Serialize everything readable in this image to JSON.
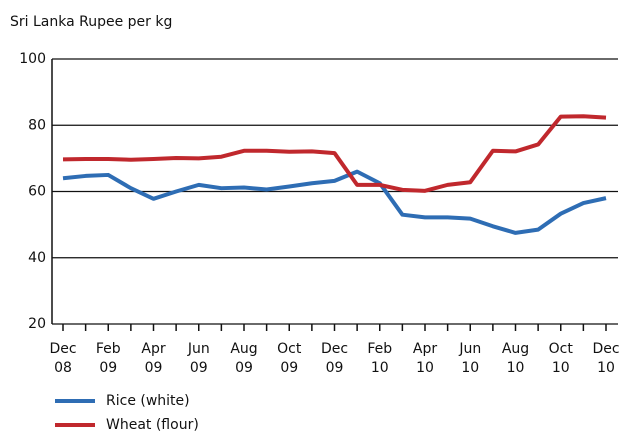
{
  "chart_data": {
    "type": "line",
    "y_label": "Sri Lanka Rupee per kg",
    "categories": [
      "Dec 08",
      null,
      "Feb 09",
      null,
      "Apr 09",
      null,
      "Jun 09",
      null,
      "Aug 09",
      null,
      "Oct 09",
      null,
      "Dec 09",
      null,
      "Feb 10",
      null,
      "Apr 10",
      null,
      "Jun 10",
      null,
      "Aug 10",
      null,
      "Oct 10",
      null,
      "Dec 10"
    ],
    "series": [
      {
        "name": "Rice (white)",
        "color": "#2e6db4",
        "values": [
          64,
          64.7,
          65,
          61,
          57.8,
          60,
          62,
          61,
          61.2,
          60.6,
          61.5,
          62.5,
          63.2,
          66,
          62.5,
          53,
          52.2,
          52.2,
          51.8,
          49.5,
          47.5,
          48.5,
          53.3,
          56.5,
          58
        ]
      },
      {
        "name": "Wheat (flour)",
        "color": "#c0282d",
        "values": [
          69.7,
          69.8,
          69.8,
          69.6,
          69.8,
          70.1,
          70,
          70.5,
          72.3,
          72.3,
          72,
          72.1,
          71.6,
          62,
          62,
          60.5,
          60.2,
          62,
          62.8,
          72.3,
          72.1,
          74.2,
          82.6,
          82.7,
          82.3
        ]
      }
    ],
    "ylim": [
      20,
      100
    ],
    "yticks": [
      20,
      40,
      60,
      80,
      100
    ],
    "grid": true
  }
}
